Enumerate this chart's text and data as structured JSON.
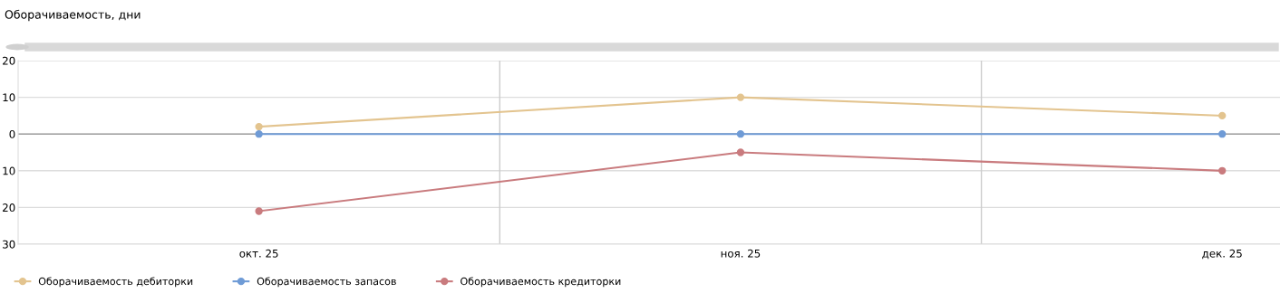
{
  "chart_data": {
    "type": "line",
    "title": "Оборачиваемость, дни",
    "categories": [
      "окт. 25",
      "ноя. 25",
      "дек. 25"
    ],
    "series": [
      {
        "name": "Оборачиваемость дебиторки",
        "color": "#e3c48f",
        "values": [
          2,
          10,
          5
        ]
      },
      {
        "name": "Оборачиваемость запасов",
        "color": "#6f9bd6",
        "values": [
          0,
          0,
          0
        ]
      },
      {
        "name": "Оборачиваемость кредиторки",
        "color": "#c97b7e",
        "values": [
          -21,
          -5,
          -10
        ]
      }
    ],
    "ylim": [
      -30,
      20
    ],
    "yticks": [
      20,
      10,
      0,
      {
        "value": -10,
        "label": "10"
      },
      {
        "value": -20,
        "label": "20"
      },
      {
        "value": -30,
        "label": "30"
      }
    ],
    "ref_lines": [
      {
        "axis": "y",
        "value": 0,
        "color": "#a0a0a0"
      }
    ],
    "grid": true,
    "legend": "bottom left",
    "marker": "circle",
    "line_style": "solid"
  }
}
